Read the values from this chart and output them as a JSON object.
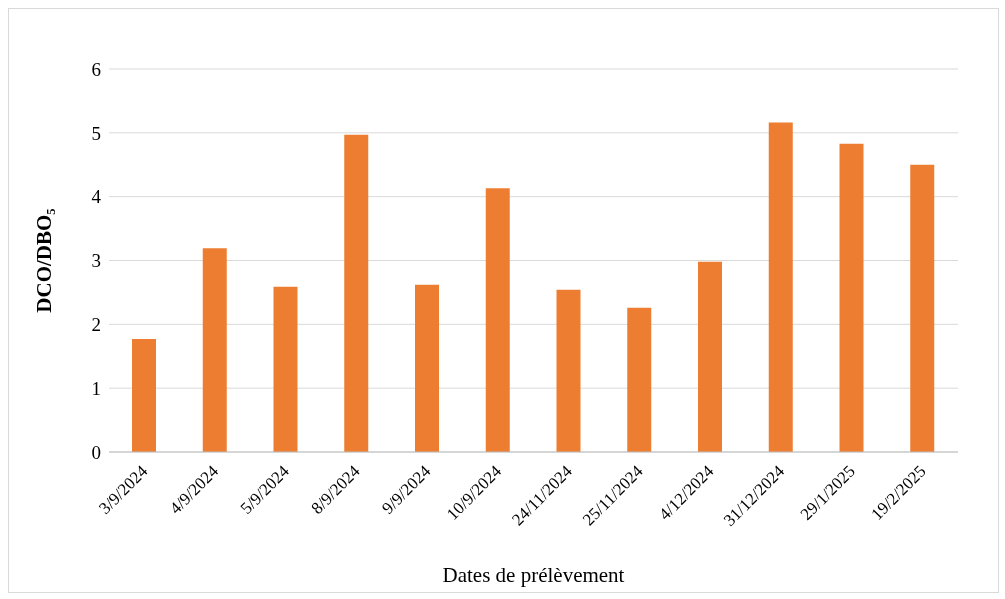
{
  "chart_data": {
    "type": "bar",
    "xlabel": "Dates de prélèvement",
    "ylabel": "DCO/DBO₅",
    "categories": [
      "3/9/2024",
      "4/9/2024",
      "5/9/2024",
      "8/9/2024",
      "9/9/2024",
      "10/9/2024",
      "24/11/2024",
      "25/11/2024",
      "4/12/2024",
      "31/12/2024",
      "29/1/2025",
      "19/2/2025"
    ],
    "values": [
      1.77,
      3.19,
      2.59,
      4.97,
      2.62,
      4.13,
      2.54,
      2.26,
      2.98,
      5.16,
      4.83,
      4.5
    ],
    "color": "#ed7d31",
    "ylim": [
      0,
      6
    ],
    "yticks": [
      0,
      1,
      2,
      3,
      4,
      5,
      6
    ],
    "grid": "y",
    "legend": false
  }
}
